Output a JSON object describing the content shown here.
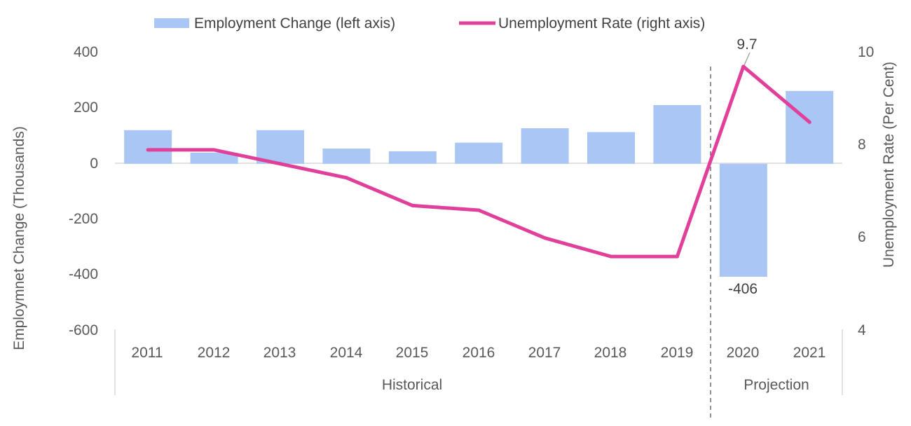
{
  "chart_data": {
    "type": "bar",
    "categories": [
      "2011",
      "2012",
      "2013",
      "2014",
      "2015",
      "2016",
      "2017",
      "2018",
      "2019",
      "2020",
      "2021"
    ],
    "groups": [
      {
        "label": "Historical",
        "start": "2011",
        "end": "2019"
      },
      {
        "label": "Projection",
        "start": "2020",
        "end": "2021"
      }
    ],
    "series": [
      {
        "name": "Employment Change (left axis)",
        "kind": "bar",
        "axis": "left",
        "color": "#a9c6f5",
        "values": [
          121,
          40,
          121,
          55,
          45,
          76,
          128,
          114,
          211,
          -406,
          262
        ]
      },
      {
        "name": "Unemployment Rate (right axis)",
        "kind": "line",
        "axis": "right",
        "color": "#e0409a",
        "values": [
          7.9,
          7.9,
          7.6,
          7.3,
          6.7,
          6.6,
          6.0,
          5.6,
          5.6,
          9.7,
          8.5
        ]
      }
    ],
    "data_labels": [
      {
        "series": "Unemployment Rate (right axis)",
        "category": "2020",
        "text": "9.7"
      },
      {
        "series": "Employment Change (left axis)",
        "category": "2020",
        "text": "-406"
      }
    ],
    "y_left": {
      "label": "Employmnet Change (Thousands)",
      "ticks": [
        "400",
        "200",
        "0",
        "-200",
        "-400",
        "-600"
      ],
      "range": [
        -600,
        400
      ]
    },
    "y_right": {
      "label": "Unemployment Rate (Per Cent)",
      "ticks": [
        "10",
        "8",
        "6",
        "4"
      ],
      "range": [
        4,
        10
      ]
    },
    "legend": {
      "position": "top"
    },
    "grid": false,
    "projection_divider_after": "2019"
  }
}
